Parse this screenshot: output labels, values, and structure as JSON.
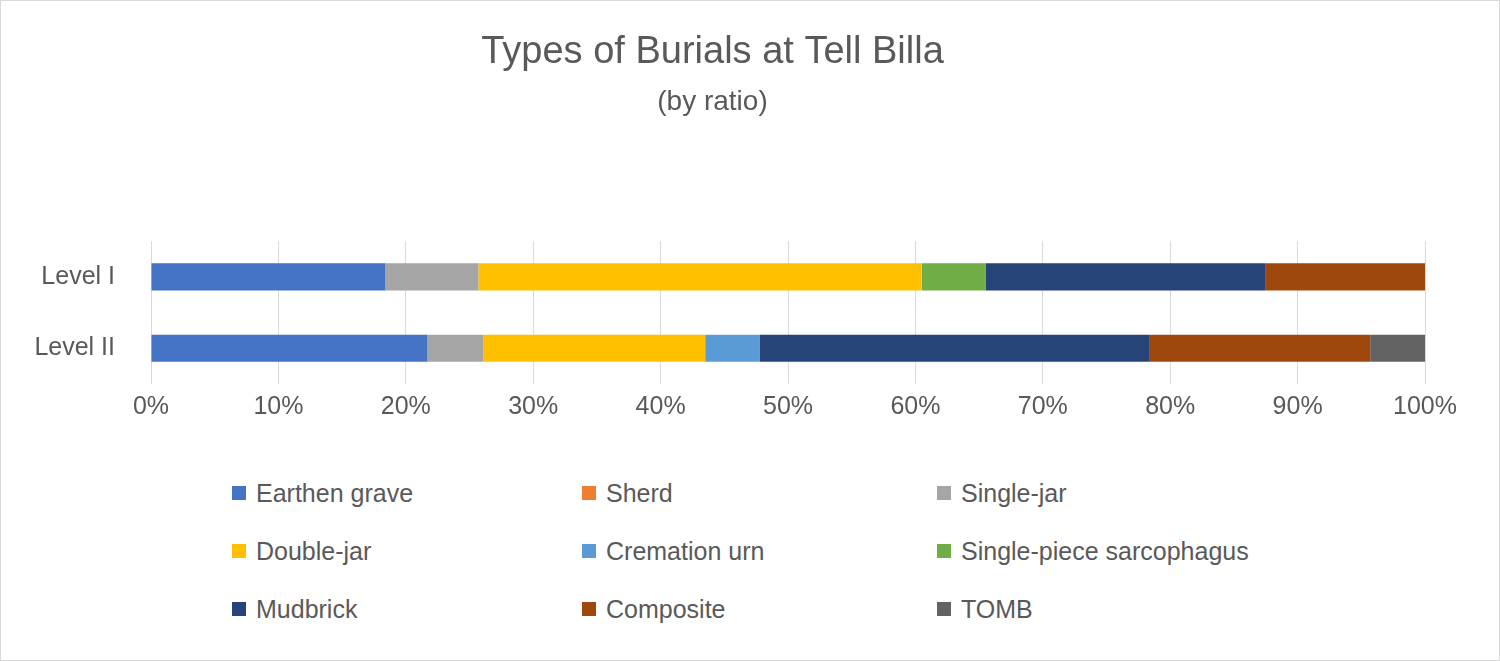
{
  "chart_data": {
    "type": "bar",
    "title": "Types of Burials at Tell Billa",
    "subtitle": "(by ratio)",
    "orientation": "horizontal",
    "stacked": true,
    "grid": true,
    "legend": "bottom",
    "categories": [
      "Level I",
      "Level II"
    ],
    "series": [
      {
        "name": "Earthen grave",
        "color": "#4472c4",
        "values": [
          18.4,
          21.7
        ]
      },
      {
        "name": "Sherd",
        "color": "#ed7d31",
        "values": [
          0,
          0
        ]
      },
      {
        "name": "Single-jar",
        "color": "#a5a5a5",
        "values": [
          7.3,
          4.4
        ]
      },
      {
        "name": "Double-jar",
        "color": "#ffc000",
        "values": [
          34.8,
          17.4
        ]
      },
      {
        "name": "Cremation urn",
        "color": "#5b9bd5",
        "values": [
          0,
          4.3
        ]
      },
      {
        "name": "Single-piece sarcophagus",
        "color": "#70ad47",
        "values": [
          5.0,
          0
        ]
      },
      {
        "name": "Mudbrick",
        "color": "#264478",
        "values": [
          22.0,
          30.6
        ]
      },
      {
        "name": "Composite",
        "color": "#9e480e",
        "values": [
          12.5,
          17.3
        ]
      },
      {
        "name": "TOMB",
        "color": "#636363",
        "values": [
          0,
          4.3
        ]
      }
    ],
    "xlim": [
      0,
      100
    ],
    "xticks": [
      {
        "value": 0,
        "label": "0%"
      },
      {
        "value": 10,
        "label": "10%"
      },
      {
        "value": 20,
        "label": "20%"
      },
      {
        "value": 30,
        "label": "30%"
      },
      {
        "value": 40,
        "label": "40%"
      },
      {
        "value": 50,
        "label": "50%"
      },
      {
        "value": 60,
        "label": "60%"
      },
      {
        "value": 70,
        "label": "70%"
      },
      {
        "value": 80,
        "label": "80%"
      },
      {
        "value": 90,
        "label": "90%"
      },
      {
        "value": 100,
        "label": "100%"
      }
    ]
  }
}
